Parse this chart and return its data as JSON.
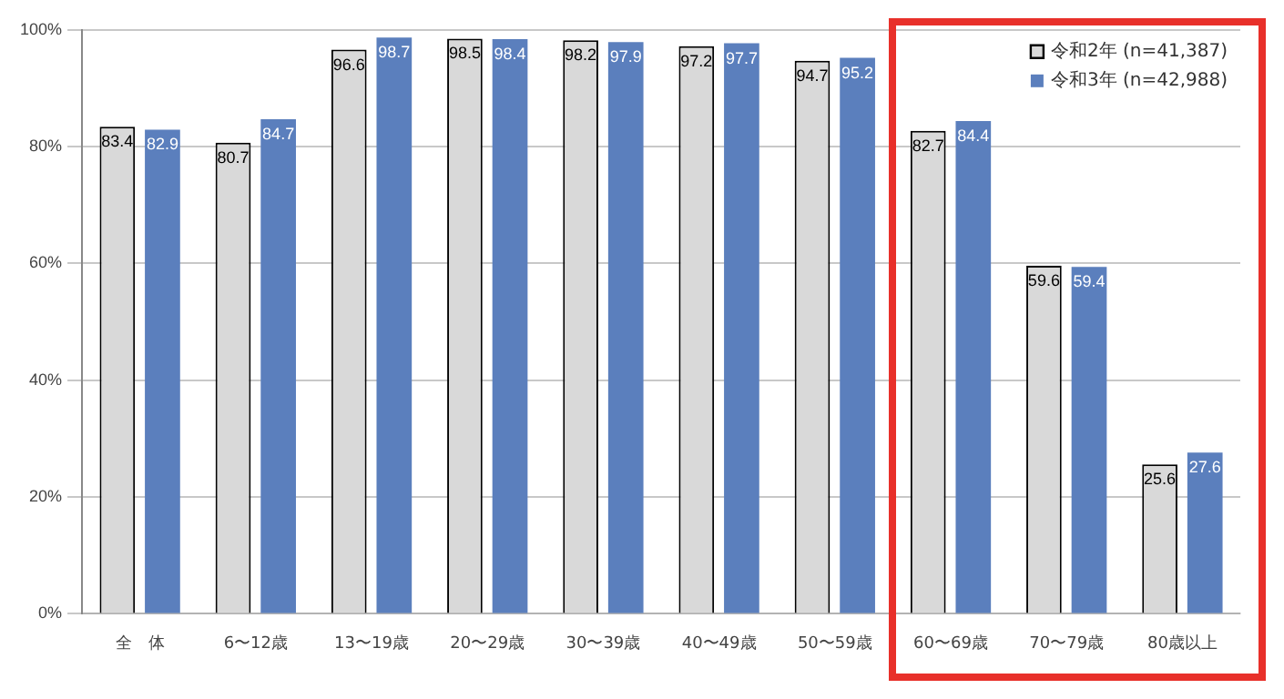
{
  "chart_data": {
    "type": "bar",
    "categories": [
      "全　体",
      "6〜12歳",
      "13〜19歳",
      "20〜29歳",
      "30〜39歳",
      "40〜49歳",
      "50〜59歳",
      "60〜69歳",
      "70〜79歳",
      "80歳以上"
    ],
    "series": [
      {
        "name": "令和2年 (n=41,387)",
        "color": "#d9d9d9",
        "values": [
          83.4,
          80.7,
          96.6,
          98.5,
          98.2,
          97.2,
          94.7,
          82.7,
          59.6,
          25.6
        ]
      },
      {
        "name": "令和3年 (n=42,988)",
        "color": "#5b7fbd",
        "values": [
          82.9,
          84.7,
          98.7,
          98.4,
          97.9,
          97.7,
          95.2,
          84.4,
          59.4,
          27.6
        ]
      }
    ],
    "ylim": [
      0,
      100
    ],
    "yticks": [
      {
        "value": 0,
        "label": "0%"
      },
      {
        "value": 20,
        "label": "20%"
      },
      {
        "value": 40,
        "label": "40%"
      },
      {
        "value": 60,
        "label": "60%"
      },
      {
        "value": 80,
        "label": "80%"
      },
      {
        "value": 100,
        "label": "100%"
      }
    ],
    "grid": "y",
    "legend": "top right",
    "data_labels": true
  }
}
